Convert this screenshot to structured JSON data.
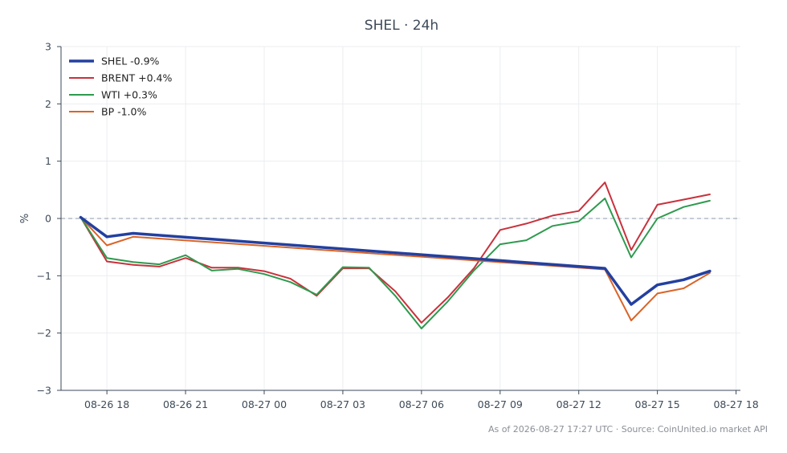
{
  "chart_data": {
    "type": "line",
    "title": "SHEL · 24h",
    "xlabel": "",
    "ylabel": "%",
    "ylim": [
      -3,
      3
    ],
    "yticks": [
      3,
      2,
      1,
      0,
      -1,
      -2,
      -3
    ],
    "ytick_labels": [
      "3",
      "2",
      "1",
      "0",
      "−1",
      "−2",
      "−3"
    ],
    "xlim": [
      "2026-08-26 16:15",
      "2026-08-27 18:10"
    ],
    "xticks": [
      "08-26 18",
      "08-26 21",
      "08-27 00",
      "08-27 03",
      "08-27 06",
      "08-27 09",
      "08-27 12",
      "08-27 15",
      "08-27 18"
    ],
    "grid": true,
    "zero_line": true,
    "legend_position": "top-left",
    "x": [
      "2026-08-26 17:00",
      "2026-08-26 18:00",
      "2026-08-26 19:00",
      "2026-08-26 20:00",
      "2026-08-26 21:00",
      "2026-08-26 22:00",
      "2026-08-26 23:00",
      "2026-08-27 00:00",
      "2026-08-27 01:00",
      "2026-08-27 02:00",
      "2026-08-27 03:00",
      "2026-08-27 04:00",
      "2026-08-27 05:00",
      "2026-08-27 06:00",
      "2026-08-27 07:00",
      "2026-08-27 08:00",
      "2026-08-27 09:00",
      "2026-08-27 10:00",
      "2026-08-27 11:00",
      "2026-08-27 12:00",
      "2026-08-27 13:00",
      "2026-08-27 14:00",
      "2026-08-27 15:00",
      "2026-08-27 16:00",
      "2026-08-27 17:00"
    ],
    "series": [
      {
        "name": "SHEL -0.9%",
        "color": "#2340a0",
        "width": 3.5,
        "x": [
          "2026-08-26 17:00",
          "2026-08-26 18:00",
          "2026-08-26 19:00",
          "2026-08-27 13:00",
          "2026-08-27 14:00",
          "2026-08-27 15:00",
          "2026-08-27 16:00",
          "2026-08-27 17:00"
        ],
        "values": [
          0.02,
          -0.32,
          -0.26,
          -0.87,
          -1.5,
          -1.16,
          -1.07,
          -0.92
        ]
      },
      {
        "name": "BRENT +0.4%",
        "color": "#c8323c",
        "width": 2,
        "values": [
          0.02,
          -0.75,
          -0.81,
          -0.84,
          -0.69,
          -0.86,
          -0.86,
          -0.92,
          -1.05,
          -1.35,
          -0.87,
          -0.87,
          -1.27,
          -1.82,
          -1.38,
          -0.87,
          -0.2,
          -0.09,
          0.05,
          0.13,
          0.63,
          -0.55,
          0.24,
          0.33,
          0.42
        ]
      },
      {
        "name": "WTI +0.3%",
        "color": "#2e9a4e",
        "width": 2,
        "values": [
          0.02,
          -0.69,
          -0.76,
          -0.8,
          -0.64,
          -0.91,
          -0.88,
          -0.97,
          -1.11,
          -1.33,
          -0.85,
          -0.86,
          -1.35,
          -1.92,
          -1.45,
          -0.91,
          -0.45,
          -0.38,
          -0.13,
          -0.05,
          0.35,
          -0.68,
          0.0,
          0.2,
          0.31
        ]
      },
      {
        "name": "BP -1.0%",
        "color": "#d96428",
        "width": 2,
        "x": [
          "2026-08-26 17:00",
          "2026-08-26 18:00",
          "2026-08-26 19:00",
          "2026-08-27 13:00",
          "2026-08-27 14:00",
          "2026-08-27 15:00",
          "2026-08-27 16:00",
          "2026-08-27 17:00"
        ],
        "values": [
          0.02,
          -0.47,
          -0.32,
          -0.89,
          -1.78,
          -1.31,
          -1.22,
          -0.95
        ]
      }
    ]
  },
  "footer": {
    "text": "As of 2026-08-27 17:27 UTC · Source: CoinUnited.io market API"
  }
}
